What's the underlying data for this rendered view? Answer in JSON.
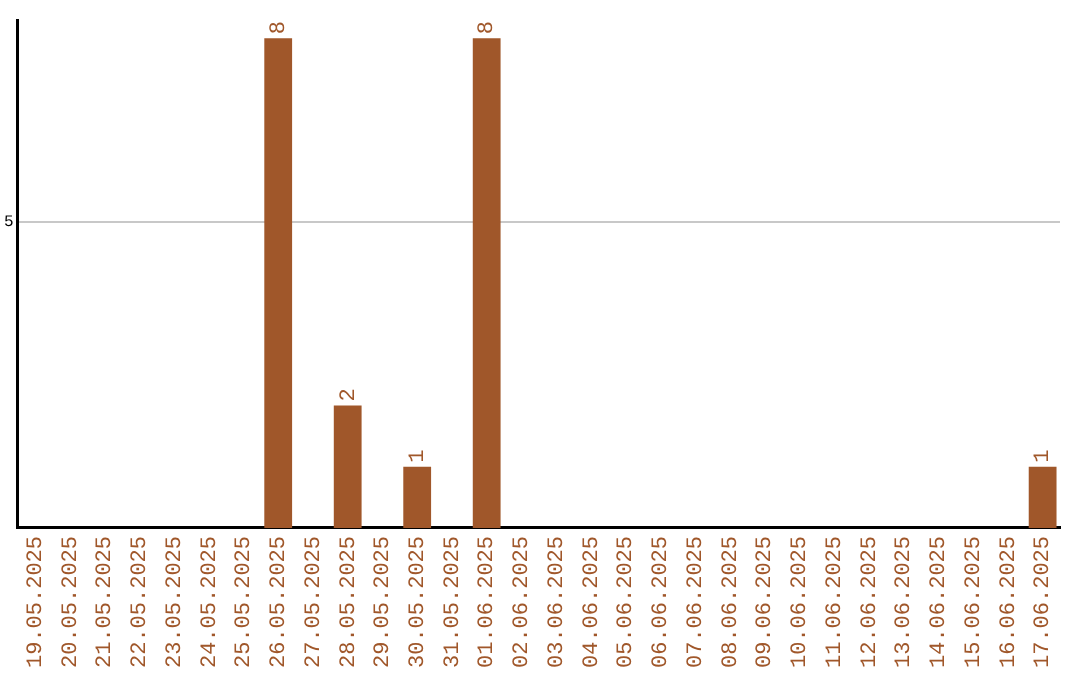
{
  "chart_data": {
    "type": "bar",
    "categories": [
      "19.05.2025",
      "20.05.2025",
      "21.05.2025",
      "22.05.2025",
      "23.05.2025",
      "24.05.2025",
      "25.05.2025",
      "26.05.2025",
      "27.05.2025",
      "28.05.2025",
      "29.05.2025",
      "30.05.2025",
      "31.05.2025",
      "01.06.2025",
      "02.06.2025",
      "03.06.2025",
      "04.06.2025",
      "05.06.2025",
      "06.06.2025",
      "07.06.2025",
      "08.06.2025",
      "09.06.2025",
      "10.06.2025",
      "11.06.2025",
      "12.06.2025",
      "13.06.2025",
      "14.06.2025",
      "15.06.2025",
      "16.06.2025",
      "17.06.2025"
    ],
    "values": [
      0,
      0,
      0,
      0,
      0,
      0,
      0,
      8,
      0,
      2,
      0,
      1,
      0,
      8,
      0,
      0,
      0,
      0,
      0,
      0,
      0,
      0,
      0,
      0,
      0,
      0,
      0,
      0,
      0,
      1
    ],
    "value_labels": [
      null,
      null,
      null,
      null,
      null,
      null,
      null,
      "8",
      null,
      "2",
      null,
      "1",
      null,
      "8",
      null,
      null,
      null,
      null,
      null,
      null,
      null,
      null,
      null,
      null,
      null,
      null,
      null,
      null,
      null,
      "1"
    ],
    "color": "#a0572a",
    "ylim": [
      0,
      8.3
    ],
    "yticks": [
      5
    ],
    "grid": "y",
    "legend": false
  }
}
